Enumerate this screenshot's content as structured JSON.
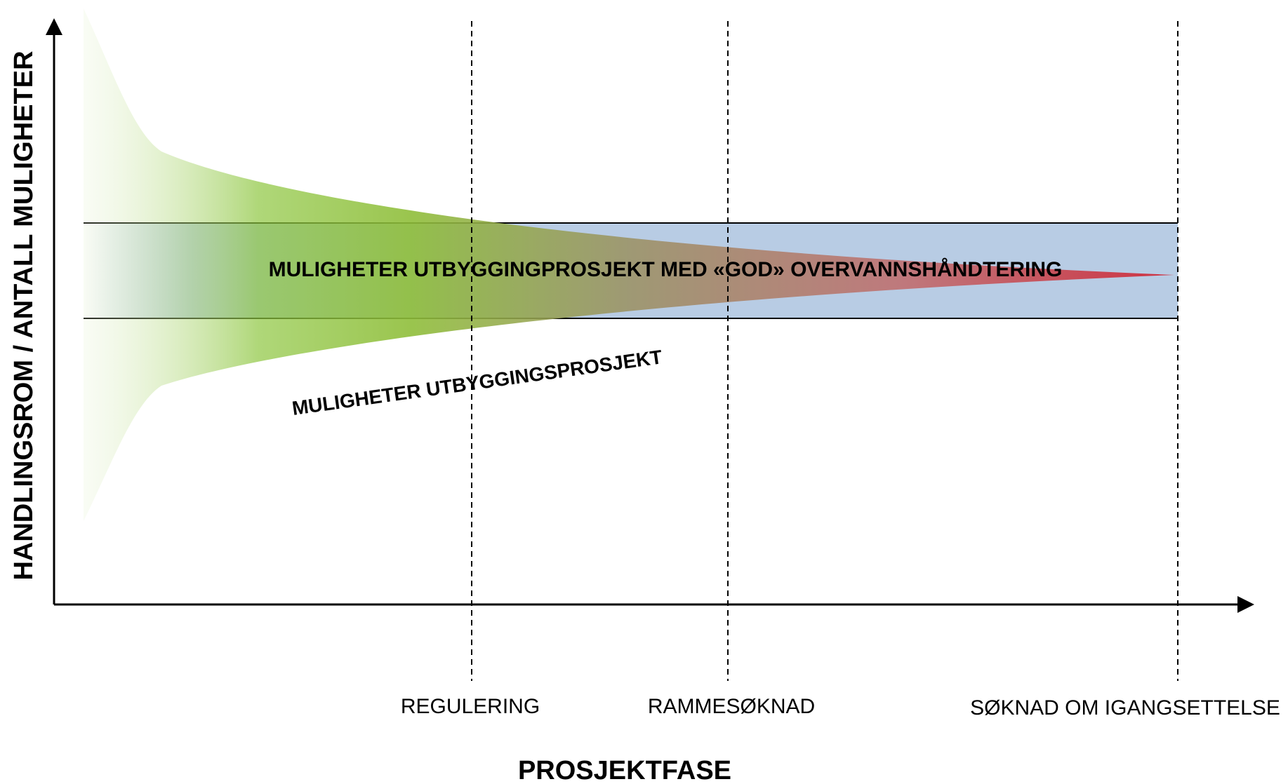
{
  "y_axis_label": "HANDLINGSROM / ANTALL MULIGHETER",
  "x_axis_label": "PROSJEKTFASE",
  "band_label": "MULIGHETER UTBYGGINGPROSJEKT MED «GOD» OVERVANNSHÅNDTERING",
  "funnel_label": "MULIGHETER UTBYGGINGSPROSJEKT",
  "phases": [
    "REGULERING",
    "RAMMESØKNAD",
    "SØKNAD OM IGANGSETTELSE"
  ]
}
